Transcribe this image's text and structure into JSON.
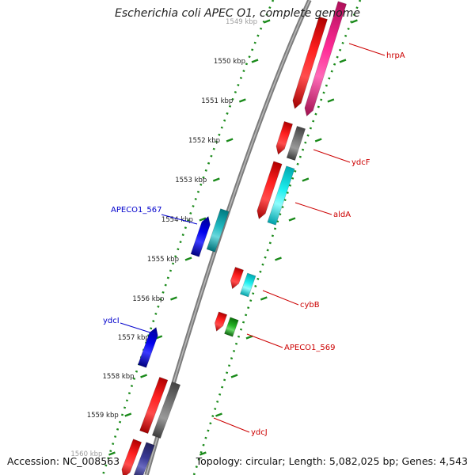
{
  "title": "Escherichia coli APEC O1, complete genome",
  "footer": {
    "accession": "Accession: NC_008563",
    "topology": "Topology: circular; Length: 5,082,025 bp; Genes: 4,543"
  },
  "colors": {
    "backbone": "#8a8a8a",
    "tick": "#1a8a1a",
    "label_fwd": "#cc0000",
    "label_rev": "#0000cc",
    "red": "#ff0000",
    "magenta": "#ff1a8c",
    "gray": "#6f6f6f",
    "cyan": "#18e8e8",
    "teal": "#20b8c0",
    "blue": "#0000ee",
    "green": "#22b022",
    "navy": "#3a3a96"
  },
  "ticks": [
    {
      "label": "1549 kbp"
    },
    {
      "label": "1550 kbp"
    },
    {
      "label": "1551 kbp"
    },
    {
      "label": "1552 kbp"
    },
    {
      "label": "1553 kbp"
    },
    {
      "label": "1554 kbp"
    },
    {
      "label": "1555 kbp"
    },
    {
      "label": "1556 kbp"
    },
    {
      "label": "1557 kbp"
    },
    {
      "label": "1558 kbp"
    },
    {
      "label": "1559 kbp"
    },
    {
      "label": "1560 kbp"
    }
  ],
  "gene_labels": [
    {
      "name": "hrpA",
      "strand": "fwd"
    },
    {
      "name": "ydcF",
      "strand": "fwd"
    },
    {
      "name": "aldA",
      "strand": "fwd"
    },
    {
      "name": "APECO1_567",
      "strand": "rev"
    },
    {
      "name": "cybB",
      "strand": "fwd"
    },
    {
      "name": "ydcI",
      "strand": "rev"
    },
    {
      "name": "APECO1_569",
      "strand": "fwd"
    },
    {
      "name": "ydcJ",
      "strand": "fwd"
    }
  ]
}
